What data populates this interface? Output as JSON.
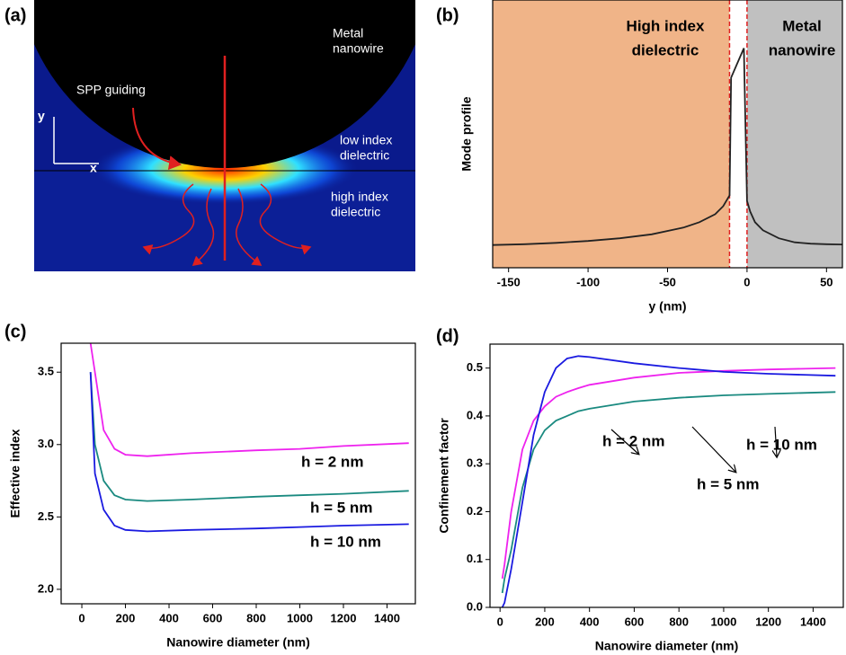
{
  "chart_data": [
    {
      "type": "field-map",
      "label": "(a)",
      "annotations": [
        [
          "Metal",
          "nanowire"
        ],
        [
          "SPP guiding"
        ],
        [
          "low index",
          "dielectric"
        ],
        [
          "high index",
          "dielectric"
        ],
        [
          "y"
        ],
        [
          "x"
        ]
      ]
    },
    {
      "type": "line",
      "label": "(b)",
      "xlabel": "y (nm)",
      "ylabel": "Mode profile",
      "x": [
        -160,
        -140,
        -120,
        -100,
        -80,
        -60,
        -40,
        -30,
        -20,
        -15,
        -11,
        -10,
        -2,
        0,
        2,
        5,
        10,
        20,
        30,
        40,
        50,
        60
      ],
      "series": [
        {
          "color": "#222222",
          "values": [
            0.085,
            0.088,
            0.093,
            0.1,
            0.11,
            0.125,
            0.15,
            0.17,
            0.2,
            0.23,
            0.27,
            0.71,
            0.82,
            0.25,
            0.21,
            0.17,
            0.14,
            0.11,
            0.095,
            0.09,
            0.088,
            0.087
          ]
        }
      ],
      "xlim": [
        -160,
        60
      ],
      "ylim": [
        0,
        1
      ],
      "xticks": [
        -150,
        -100,
        -50,
        0,
        50
      ],
      "regions": [
        {
          "from": -160,
          "to": -11,
          "color": "#f0b488",
          "text": [
            "High index",
            "dielectric"
          ]
        },
        {
          "from": 0,
          "to": 60,
          "color": "#c0c0c0",
          "text": [
            "Metal",
            "nanowire"
          ]
        }
      ],
      "boundaries": [
        -11,
        0
      ]
    },
    {
      "type": "line",
      "label": "(c)",
      "xlabel": "Nanowire diameter (nm)",
      "ylabel": "Effective index",
      "x": [
        40,
        60,
        100,
        150,
        200,
        300,
        500,
        800,
        1000,
        1200,
        1500
      ],
      "series": [
        {
          "name": "h = 2 nm",
          "color": "#ee22ee",
          "values": [
            3.7,
            3.5,
            3.1,
            2.97,
            2.93,
            2.92,
            2.94,
            2.96,
            2.97,
            2.99,
            3.01
          ]
        },
        {
          "name": "h = 5 nm",
          "color": "#1a8a80",
          "values": [
            3.5,
            3.0,
            2.75,
            2.65,
            2.62,
            2.61,
            2.62,
            2.64,
            2.65,
            2.66,
            2.68
          ]
        },
        {
          "name": "h = 10 nm",
          "color": "#1a1ae0",
          "values": [
            3.5,
            2.8,
            2.55,
            2.44,
            2.41,
            2.4,
            2.41,
            2.42,
            2.43,
            2.44,
            2.45
          ]
        }
      ],
      "xlim": [
        -95,
        1530
      ],
      "ylim": [
        1.9,
        3.7
      ],
      "xticks": [
        0,
        200,
        400,
        600,
        800,
        1000,
        1200,
        1400
      ],
      "yticks": [
        {
          "value": 2,
          "label": "2.0"
        },
        2.5,
        {
          "value": 3,
          "label": "3.0"
        },
        3.5
      ]
    },
    {
      "type": "line",
      "label": "(d)",
      "xlabel": "Nanowire diameter (nm)",
      "ylabel": "Confinement factor",
      "x": [
        10,
        20,
        50,
        100,
        150,
        200,
        250,
        300,
        350,
        400,
        600,
        800,
        1000,
        1200,
        1500
      ],
      "series": [
        {
          "name": "h = 2 nm",
          "color": "#ee22ee",
          "values": [
            0.06,
            0.09,
            0.2,
            0.33,
            0.39,
            0.42,
            0.44,
            0.45,
            0.458,
            0.465,
            0.48,
            0.49,
            0.494,
            0.497,
            0.5
          ]
        },
        {
          "name": "h = 5 nm",
          "color": "#1a8a80",
          "values": [
            0.03,
            0.06,
            0.12,
            0.25,
            0.33,
            0.37,
            0.39,
            0.4,
            0.41,
            0.415,
            0.43,
            0.438,
            0.443,
            0.446,
            0.45
          ]
        },
        {
          "name": "h = 10 nm",
          "color": "#1a1ae0",
          "values": [
            0,
            0.01,
            0.08,
            0.22,
            0.36,
            0.45,
            0.5,
            0.52,
            0.525,
            0.523,
            0.51,
            0.5,
            0.492,
            0.488,
            0.484
          ]
        }
      ],
      "xlim": [
        -45,
        1535
      ],
      "ylim": [
        0,
        0.55
      ],
      "xticks": [
        0,
        200,
        400,
        600,
        800,
        1000,
        1200,
        1400
      ],
      "yticks": [
        {
          "value": 0,
          "label": "0.0"
        },
        0.1,
        0.2,
        0.3,
        0.4,
        0.5
      ]
    }
  ]
}
